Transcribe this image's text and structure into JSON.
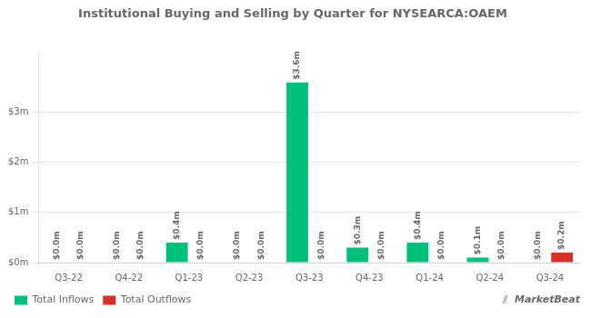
{
  "chart_data": {
    "type": "bar",
    "title": "Institutional Buying and Selling by Quarter for NYSEARCA:OAEM",
    "categories": [
      "Q3-22",
      "Q4-22",
      "Q1-23",
      "Q2-23",
      "Q3-23",
      "Q4-23",
      "Q1-24",
      "Q2-24",
      "Q3-24"
    ],
    "series": [
      {
        "name": "Total Inflows",
        "color": "#00c07a",
        "values": [
          0.0,
          0.0,
          0.4,
          0.0,
          3.6,
          0.3,
          0.4,
          0.1,
          0.0
        ],
        "value_labels": [
          "$0.0m",
          "$0.0m",
          "$0.4m",
          "$0.0m",
          "$3.6m",
          "$0.3m",
          "$0.4m",
          "$0.1m",
          "$0.0m"
        ]
      },
      {
        "name": "Total Outflows",
        "color": "#d93025",
        "values": [
          0.0,
          0.0,
          0.0,
          0.0,
          0.0,
          0.0,
          0.0,
          0.0,
          0.2
        ],
        "value_labels": [
          "$0.0m",
          "$0.0m",
          "$0.0m",
          "$0.0m",
          "$0.0m",
          "$0.0m",
          "$0.0m",
          "$0.0m",
          "$0.2m"
        ]
      }
    ],
    "ylim": [
      0,
      4.2
    ],
    "yticks": [
      {
        "value": 0,
        "label": "$0m"
      },
      {
        "value": 1,
        "label": "$1m"
      },
      {
        "value": 2,
        "label": "$2m"
      },
      {
        "value": 3,
        "label": "$3m"
      }
    ],
    "grid": true,
    "legend": "lower left",
    "data_labels": true,
    "annotations": [
      "⫽",
      "MarketBeat"
    ]
  }
}
